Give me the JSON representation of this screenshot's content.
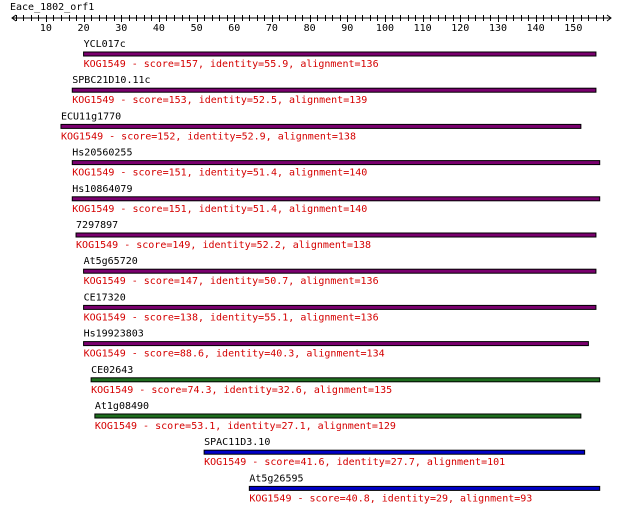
{
  "query": {
    "name": "Eace_1802_orf1"
  },
  "axis": {
    "min": 1,
    "max": 160,
    "major_ticks": [
      10,
      20,
      30,
      40,
      50,
      60,
      70,
      80,
      90,
      100,
      110,
      120,
      130,
      140,
      150
    ]
  },
  "colors": {
    "purple": "#7a006e",
    "green": "#1e6e1e",
    "blue": "#0000c8",
    "desc": "#d40000"
  },
  "hits": [
    {
      "name": "YCL017c",
      "desc": "KOG1549 - score=157, identity=55.9, alignment=136",
      "start": 20,
      "end": 156,
      "color": "purple"
    },
    {
      "name": "SPBC21D10.11c",
      "desc": "KOG1549 - score=153, identity=52.5, alignment=139",
      "start": 17,
      "end": 156,
      "color": "purple"
    },
    {
      "name": "ECU11g1770",
      "desc": "KOG1549 - score=152, identity=52.9, alignment=138",
      "start": 14,
      "end": 152,
      "color": "purple"
    },
    {
      "name": "Hs20560255",
      "desc": "KOG1549 - score=151, identity=51.4, alignment=140",
      "start": 17,
      "end": 157,
      "color": "purple"
    },
    {
      "name": "Hs10864079",
      "desc": "KOG1549 - score=151, identity=51.4, alignment=140",
      "start": 17,
      "end": 157,
      "color": "purple"
    },
    {
      "name": "7297897",
      "desc": "KOG1549 - score=149, identity=52.2, alignment=138",
      "start": 18,
      "end": 156,
      "color": "purple"
    },
    {
      "name": "At5g65720",
      "desc": "KOG1549 - score=147, identity=50.7, alignment=136",
      "start": 20,
      "end": 156,
      "color": "purple"
    },
    {
      "name": "CE17320",
      "desc": "KOG1549 - score=138, identity=55.1, alignment=136",
      "start": 20,
      "end": 156,
      "color": "purple"
    },
    {
      "name": "Hs19923803",
      "desc": "KOG1549 - score=88.6, identity=40.3, alignment=134",
      "start": 20,
      "end": 154,
      "color": "purple"
    },
    {
      "name": "CE02643",
      "desc": "KOG1549 - score=74.3, identity=32.6, alignment=135",
      "start": 22,
      "end": 157,
      "color": "green"
    },
    {
      "name": "At1g08490",
      "desc": "KOG1549 - score=53.1, identity=27.1, alignment=129",
      "start": 23,
      "end": 152,
      "color": "green"
    },
    {
      "name": "SPAC11D3.10",
      "desc": "KOG1549 - score=41.6, identity=27.7, alignment=101",
      "start": 52,
      "end": 153,
      "color": "blue"
    },
    {
      "name": "At5g26595",
      "desc": "KOG1549 - score=40.8, identity=29, alignment=93",
      "start": 64,
      "end": 157,
      "color": "blue"
    }
  ]
}
